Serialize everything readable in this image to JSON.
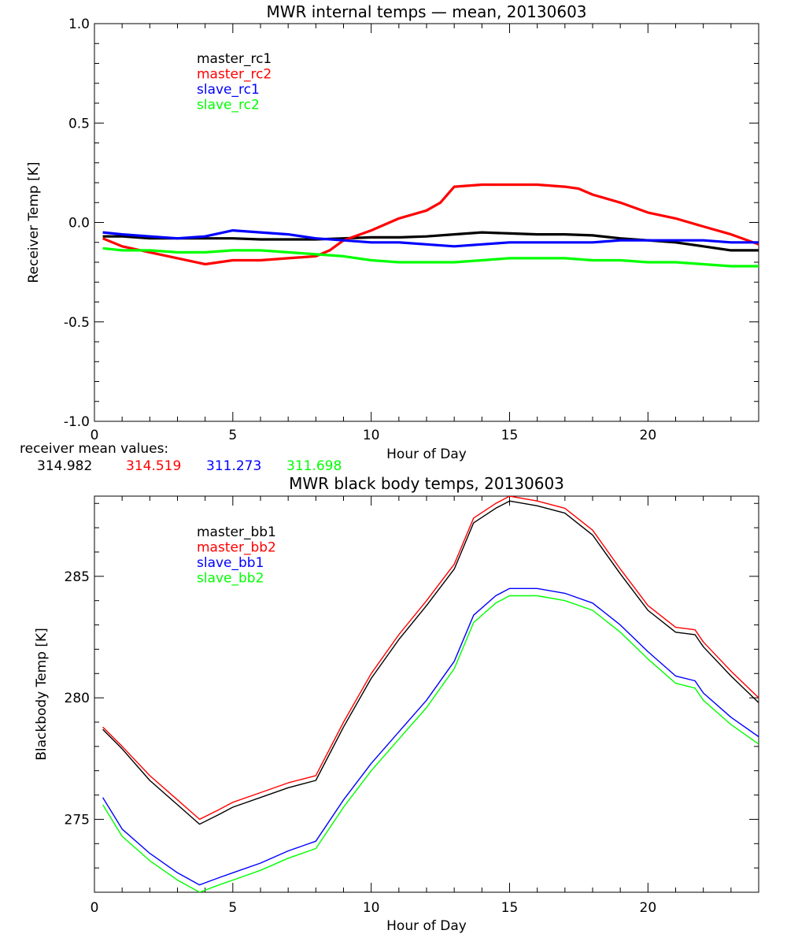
{
  "colors": {
    "master_1": "#000000",
    "master_2": "#ff0000",
    "slave_1": "#0000ff",
    "slave_2": "#00ff00"
  },
  "receiver_means": {
    "label": "receiver mean values:",
    "values": [
      {
        "text": "314.982",
        "color": "#000000"
      },
      {
        "text": "314.519",
        "color": "#ff0000"
      },
      {
        "text": "311.273",
        "color": "#0000ff"
      },
      {
        "text": "311.698",
        "color": "#00ff00"
      }
    ]
  },
  "chart_data": [
    {
      "type": "line",
      "title": "MWR internal temps — mean, 20130603",
      "xlabel": "Hour of Day",
      "ylabel": "Receiver Temp [K]",
      "xlim": [
        0,
        24
      ],
      "ylim": [
        -1.0,
        1.0
      ],
      "xticks": [
        "0",
        "5",
        "10",
        "15",
        "20"
      ],
      "yticks": [
        "-1.0",
        "-0.5",
        "0.0",
        "0.5",
        "1.0"
      ],
      "legend_position": "top-left",
      "series": [
        {
          "name": "master_rc1",
          "color": "#000000",
          "x": [
            0.3,
            1,
            2,
            3,
            4,
            5,
            6,
            7,
            8,
            9,
            10,
            11,
            12,
            13,
            14,
            15,
            16,
            17,
            18,
            19,
            20,
            21,
            22,
            23,
            24
          ],
          "y": [
            -0.07,
            -0.07,
            -0.08,
            -0.08,
            -0.08,
            -0.08,
            -0.085,
            -0.085,
            -0.085,
            -0.08,
            -0.075,
            -0.075,
            -0.07,
            -0.06,
            -0.05,
            -0.055,
            -0.06,
            -0.06,
            -0.065,
            -0.08,
            -0.09,
            -0.1,
            -0.12,
            -0.14,
            -0.14
          ]
        },
        {
          "name": "master_rc2",
          "color": "#ff0000",
          "x": [
            0.3,
            1,
            2,
            3,
            4,
            5,
            6,
            7,
            8,
            8.5,
            9,
            10,
            11,
            12,
            12.5,
            13,
            14,
            15,
            16,
            17,
            17.5,
            18,
            19,
            20,
            21,
            22,
            23,
            24
          ],
          "y": [
            -0.08,
            -0.12,
            -0.15,
            -0.18,
            -0.21,
            -0.19,
            -0.19,
            -0.18,
            -0.17,
            -0.14,
            -0.09,
            -0.04,
            0.02,
            0.06,
            0.1,
            0.18,
            0.19,
            0.19,
            0.19,
            0.18,
            0.17,
            0.14,
            0.1,
            0.05,
            0.02,
            -0.02,
            -0.06,
            -0.11
          ]
        },
        {
          "name": "slave_rc1",
          "color": "#0000ff",
          "x": [
            0.3,
            1,
            2,
            3,
            4,
            5,
            6,
            7,
            8,
            9,
            10,
            11,
            12,
            13,
            14,
            15,
            16,
            17,
            18,
            19,
            20,
            21,
            22,
            23,
            24
          ],
          "y": [
            -0.05,
            -0.06,
            -0.07,
            -0.08,
            -0.07,
            -0.04,
            -0.05,
            -0.06,
            -0.08,
            -0.09,
            -0.1,
            -0.1,
            -0.11,
            -0.12,
            -0.11,
            -0.1,
            -0.1,
            -0.1,
            -0.1,
            -0.09,
            -0.09,
            -0.09,
            -0.09,
            -0.1,
            -0.1
          ]
        },
        {
          "name": "slave_rc2",
          "color": "#00ff00",
          "x": [
            0.3,
            1,
            2,
            3,
            4,
            5,
            6,
            7,
            8,
            9,
            10,
            11,
            12,
            13,
            14,
            15,
            16,
            17,
            18,
            19,
            20,
            21,
            22,
            23,
            24
          ],
          "y": [
            -0.13,
            -0.14,
            -0.14,
            -0.15,
            -0.15,
            -0.14,
            -0.14,
            -0.15,
            -0.16,
            -0.17,
            -0.19,
            -0.2,
            -0.2,
            -0.2,
            -0.19,
            -0.18,
            -0.18,
            -0.18,
            -0.19,
            -0.19,
            -0.2,
            -0.2,
            -0.21,
            -0.22,
            -0.22
          ]
        }
      ]
    },
    {
      "type": "line",
      "title": "MWR black body temps, 20130603",
      "xlabel": "Hour of Day",
      "ylabel": "Blackbody Temp [K]",
      "xlim": [
        0,
        24
      ],
      "ylim": [
        272,
        288.3
      ],
      "xticks": [
        "0",
        "5",
        "10",
        "15",
        "20"
      ],
      "yticks": [
        "275",
        "280",
        "285"
      ],
      "legend_position": "top-left",
      "series": [
        {
          "name": "master_bb1",
          "color": "#000000",
          "x": [
            0.3,
            1,
            2,
            3,
            3.8,
            4.5,
            5,
            6,
            7,
            8,
            9,
            10,
            11,
            12,
            13,
            13.7,
            14.5,
            15,
            16,
            17,
            18,
            19,
            20,
            21,
            21.7,
            22,
            23,
            24
          ],
          "y": [
            278.7,
            277.9,
            276.6,
            275.6,
            274.8,
            275.2,
            275.5,
            275.9,
            276.3,
            276.6,
            278.8,
            280.8,
            282.4,
            283.8,
            285.3,
            287.2,
            287.8,
            288.1,
            287.9,
            287.6,
            286.7,
            285.1,
            283.6,
            282.7,
            282.6,
            282.1,
            280.9,
            279.8
          ]
        },
        {
          "name": "master_bb2",
          "color": "#ff0000",
          "x": [
            0.3,
            1,
            2,
            3,
            3.8,
            4.5,
            5,
            6,
            7,
            8,
            9,
            10,
            11,
            12,
            13,
            13.7,
            14.5,
            15,
            16,
            17,
            18,
            19,
            20,
            21,
            21.7,
            22,
            23,
            24
          ],
          "y": [
            278.8,
            278.0,
            276.8,
            275.8,
            275.0,
            275.4,
            275.7,
            276.1,
            276.5,
            276.8,
            279.0,
            281.0,
            282.6,
            284.0,
            285.5,
            287.4,
            288.0,
            288.3,
            288.1,
            287.8,
            286.9,
            285.3,
            283.8,
            282.9,
            282.8,
            282.3,
            281.1,
            280.0
          ]
        },
        {
          "name": "slave_bb1",
          "color": "#0000ff",
          "x": [
            0.3,
            1,
            2,
            3,
            3.8,
            4.5,
            5,
            6,
            7,
            8,
            9,
            10,
            11,
            12,
            13,
            13.7,
            14.5,
            15,
            16,
            17,
            18,
            19,
            20,
            21,
            21.7,
            22,
            23,
            24
          ],
          "y": [
            275.9,
            274.6,
            273.6,
            272.8,
            272.3,
            272.6,
            272.8,
            273.2,
            273.7,
            274.1,
            275.8,
            277.3,
            278.6,
            279.9,
            281.5,
            283.4,
            284.2,
            284.5,
            284.5,
            284.3,
            283.9,
            283.0,
            281.9,
            280.9,
            280.7,
            280.2,
            279.2,
            278.4
          ]
        },
        {
          "name": "slave_bb2",
          "color": "#00ff00",
          "x": [
            0.3,
            1,
            2,
            3,
            3.8,
            4.5,
            5,
            6,
            7,
            8,
            9,
            10,
            11,
            12,
            13,
            13.7,
            14.5,
            15,
            16,
            17,
            18,
            19,
            20,
            21,
            21.7,
            22,
            23,
            24
          ],
          "y": [
            275.6,
            274.3,
            273.3,
            272.5,
            272.0,
            272.3,
            272.5,
            272.9,
            273.4,
            273.8,
            275.5,
            277.0,
            278.3,
            279.6,
            281.2,
            283.1,
            283.9,
            284.2,
            284.2,
            284.0,
            283.6,
            282.7,
            281.6,
            280.6,
            280.4,
            279.9,
            278.9,
            278.1
          ]
        }
      ]
    }
  ]
}
